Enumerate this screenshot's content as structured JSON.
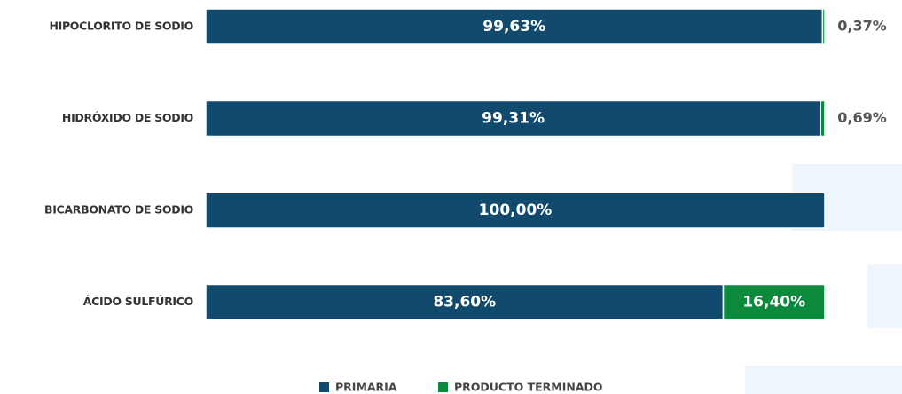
{
  "chart_data": {
    "type": "stacked_bar_horizontal",
    "categories": [
      "HIPOCLORITO DE SODIO",
      "HIDRÓXIDO DE SODIO",
      "BICARBONATO DE SODIO",
      "ÁCIDO SULFÚRICO"
    ],
    "xlim": [
      0,
      100
    ],
    "series": [
      {
        "name": "PRIMARIA",
        "color": "#124a6e",
        "values": [
          99.63,
          99.31,
          100,
          83.6
        ],
        "value_labels": [
          "99,63%",
          "99,31%",
          "100,00%",
          "83,60%"
        ]
      },
      {
        "name": "PRODUCTO TERMINADO",
        "color": "#0b8a3c",
        "values": [
          0.37,
          0.69,
          0,
          16.4
        ],
        "value_labels": [
          "0,37%",
          "0,69%",
          null,
          "16,40%"
        ]
      }
    ]
  }
}
